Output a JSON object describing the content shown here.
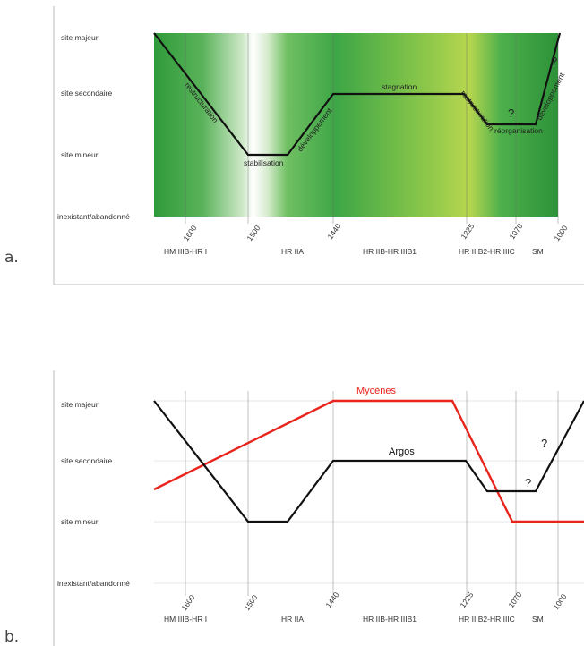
{
  "y_levels": [
    "inexistant/abandonné",
    "site mineur",
    "site secondaire",
    "site majeur"
  ],
  "chart_data": [
    {
      "panel": "a.",
      "type": "line",
      "x_ticks": [
        "1600",
        "1500",
        "1440",
        "1225",
        "1070",
        "1000"
      ],
      "periods": [
        "HM IIIB-HR I",
        "HR IIA",
        "HR IIB-HR IIIB1",
        "HR IIIB2-HR IIIC",
        "SM"
      ],
      "series": [
        {
          "name": "",
          "color": "#111111",
          "points": [
            {
              "x": "start",
              "y": "site majeur"
            },
            {
              "x": "1500",
              "y": "site mineur"
            },
            {
              "x": "1470",
              "y": "site mineur"
            },
            {
              "x": "1440",
              "y": "site secondaire"
            },
            {
              "x": "1225",
              "y": "site secondaire"
            },
            {
              "x": "1210",
              "y": "site mineur+"
            },
            {
              "x": "1030",
              "y": "site mineur+"
            },
            {
              "x": "1000",
              "y": "site majeur"
            }
          ]
        }
      ],
      "annotations": [
        "restructuration",
        "stabilisation",
        "développement",
        "stagnation",
        "restructuration",
        "réorganisation",
        "développement"
      ],
      "question_marks": [
        "?",
        "?"
      ],
      "background": "green gradient"
    },
    {
      "panel": "b.",
      "type": "line",
      "x_ticks": [
        "1600",
        "1500",
        "1440",
        "1225",
        "1070",
        "1000"
      ],
      "periods": [
        "HM IIIB-HR I",
        "HR  IIA",
        "HR IIB-HR IIIB1",
        "HR IIIB2-HR IIIC",
        "SM"
      ],
      "series": [
        {
          "name": "Argos",
          "color": "#111111"
        },
        {
          "name": "Mycènes",
          "color": "#e8241c"
        }
      ],
      "question_marks": [
        "?",
        "?"
      ]
    }
  ]
}
